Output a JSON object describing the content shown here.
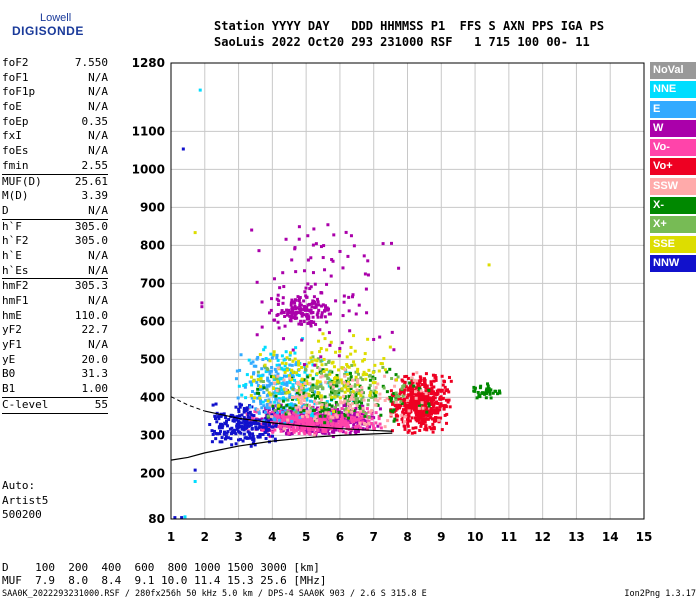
{
  "logo": {
    "top": "Lowell",
    "bottom": "DIGISONDE"
  },
  "header": {
    "line1": "Station YYYY DAY   DDD HHMMSS P1  FFS S AXN PPS IGA PS",
    "line2": "SaoLuis 2022 Oct20 293 231000 RSF   1 715 100 00- 11"
  },
  "params": {
    "group1": [
      {
        "name": "foF2",
        "value": "7.550"
      },
      {
        "name": "foF1",
        "value": "N/A"
      },
      {
        "name": "foF1p",
        "value": "N/A"
      },
      {
        "name": "foE",
        "value": "N/A"
      },
      {
        "name": "foEp",
        "value": "0.35"
      },
      {
        "name": "fxI",
        "value": "N/A"
      },
      {
        "name": "foEs",
        "value": "N/A"
      },
      {
        "name": "fmin",
        "value": "2.55"
      }
    ],
    "group2": [
      {
        "name": "MUF(D)",
        "value": "25.61"
      },
      {
        "name": "M(D)",
        "value": "3.39"
      },
      {
        "name": "D",
        "value": "N/A"
      }
    ],
    "group3": [
      {
        "name": "h`F",
        "value": "305.0"
      },
      {
        "name": "h`F2",
        "value": "305.0"
      },
      {
        "name": "h`E",
        "value": "N/A"
      },
      {
        "name": "h`Es",
        "value": "N/A"
      }
    ],
    "group4": [
      {
        "name": "hmF2",
        "value": "305.3"
      },
      {
        "name": "hmF1",
        "value": "N/A"
      },
      {
        "name": "hmE",
        "value": "110.0"
      },
      {
        "name": "yF2",
        "value": "22.7"
      },
      {
        "name": "yF1",
        "value": "N/A"
      },
      {
        "name": "yE",
        "value": "20.0"
      },
      {
        "name": "B0",
        "value": "31.3"
      },
      {
        "name": "B1",
        "value": "1.00"
      }
    ],
    "group5": [
      {
        "name": "C-level",
        "value": "55"
      }
    ]
  },
  "auto": [
    "Auto:",
    "Artist5",
    "500200"
  ],
  "legend": [
    {
      "label": "NoVal",
      "color": "#999999"
    },
    {
      "label": "NNE",
      "color": "#00ddff"
    },
    {
      "label": "E",
      "color": "#33aaff"
    },
    {
      "label": "W",
      "color": "#aa00aa"
    },
    {
      "label": "Vo-",
      "color": "#ff44aa"
    },
    {
      "label": "Vo+",
      "color": "#ee0022"
    },
    {
      "label": "SSW",
      "color": "#ffaaaa"
    },
    {
      "label": "X-",
      "color": "#008800"
    },
    {
      "label": "X+",
      "color": "#77bb55"
    },
    {
      "label": "SSE",
      "color": "#dddd00"
    },
    {
      "label": "NNW",
      "color": "#1111cc"
    }
  ],
  "muf_table": {
    "d_line": "D    100  200  400  600  800 1000 1500 3000 [km]",
    "muf_line": "MUF  7.9  8.0  8.4  9.1 10.0 11.4 15.3 25.6 [MHz]"
  },
  "footer": {
    "left": "SAA0K_2022293231000.RSF / 280fx256h 50 kHz 5.0 km / DPS-4 SAA0K 903 / 2.6 S 315.8 E",
    "right": "Ion2Png 1.3.17"
  },
  "chart_data": {
    "type": "scatter",
    "xlim": [
      1,
      15
    ],
    "ylim": [
      80,
      1280
    ],
    "x_unit": "MHz",
    "y_unit": "km",
    "x_ticks": [
      "1",
      "2",
      "3",
      "4",
      "5",
      "6",
      "7",
      "8",
      "9",
      "10",
      "11",
      "12",
      "13",
      "14",
      "15"
    ],
    "y_ticks": [
      {
        "value": 80,
        "label": "80"
      },
      {
        "value": 200,
        "label": "200"
      },
      {
        "value": 300,
        "label": "300"
      },
      {
        "value": 400,
        "label": "400"
      },
      {
        "value": 500,
        "label": "500"
      },
      {
        "value": 600,
        "label": "600"
      },
      {
        "value": 700,
        "label": "700"
      },
      {
        "value": 800,
        "label": "800"
      },
      {
        "value": 900,
        "label": "900"
      },
      {
        "value": 1000,
        "label": "1000"
      },
      {
        "value": 1100,
        "label": "1100"
      },
      {
        "value": 1280,
        "label": "1280"
      }
    ],
    "grid": true,
    "clusters": [
      {
        "series": "W",
        "x": [
          3.5,
          7.2
        ],
        "y": [
          300,
          390
        ],
        "density": 520
      },
      {
        "series": "Vo-",
        "x": [
          3.0,
          7.3
        ],
        "y": [
          305,
          380
        ],
        "density": 420
      },
      {
        "series": "Vo+",
        "x": [
          7.4,
          9.3
        ],
        "y": [
          305,
          470
        ],
        "density": 520
      },
      {
        "series": "NNW",
        "x": [
          2.0,
          4.2
        ],
        "y": [
          270,
          390
        ],
        "density": 220
      },
      {
        "series": "E",
        "x": [
          2.8,
          5.5
        ],
        "y": [
          320,
          540
        ],
        "density": 170
      },
      {
        "series": "NNE",
        "x": [
          2.8,
          6.5
        ],
        "y": [
          330,
          560
        ],
        "density": 110
      },
      {
        "series": "X-",
        "x": [
          3.2,
          9.0
        ],
        "y": [
          330,
          480
        ],
        "density": 160
      },
      {
        "series": "X+",
        "x": [
          3.2,
          8.5
        ],
        "y": [
          340,
          520
        ],
        "density": 160
      },
      {
        "series": "SSE",
        "x": [
          3.0,
          8.0
        ],
        "y": [
          350,
          580
        ],
        "density": 160
      },
      {
        "series": "SSW",
        "x": [
          3.0,
          9.2
        ],
        "y": [
          300,
          500
        ],
        "density": 140
      },
      {
        "series": "W",
        "x": [
          3.8,
          5.8
        ],
        "y": [
          580,
          680
        ],
        "density": 140
      },
      {
        "series": "W",
        "x": [
          3.0,
          7.8
        ],
        "y": [
          450,
          900
        ],
        "density": 100
      },
      {
        "series": "X-",
        "x": [
          9.8,
          10.8
        ],
        "y": [
          400,
          440
        ],
        "density": 40
      }
    ],
    "isolated_points": [
      {
        "series": "NNW",
        "x": 1.35,
        "y": 1055
      },
      {
        "series": "NNE",
        "x": 1.85,
        "y": 1210
      },
      {
        "series": "SSE",
        "x": 1.7,
        "y": 835
      },
      {
        "series": "W",
        "x": 1.9,
        "y": 650
      },
      {
        "series": "W",
        "x": 1.9,
        "y": 640
      },
      {
        "series": "NNW",
        "x": 1.1,
        "y": 85
      },
      {
        "series": "NNW",
        "x": 1.3,
        "y": 85
      },
      {
        "series": "NNE",
        "x": 1.4,
        "y": 87
      },
      {
        "series": "SSE",
        "x": 10.4,
        "y": 750
      },
      {
        "series": "NNE",
        "x": 1.7,
        "y": 180
      },
      {
        "series": "NNW",
        "x": 1.7,
        "y": 210
      }
    ],
    "lines": [
      {
        "name": "virtual",
        "x": [
          1.0,
          1.5,
          2.0,
          3.0,
          4.0,
          5.0,
          6.0,
          7.0,
          7.55
        ],
        "y": [
          402,
          380,
          364,
          345,
          333,
          324,
          318,
          313,
          311
        ],
        "dashed": [
          1.0,
          2.0
        ]
      },
      {
        "name": "true",
        "x": [
          1.0,
          1.5,
          2.0,
          3.0,
          4.0,
          5.0,
          6.0,
          7.0,
          7.55
        ],
        "y": [
          235,
          242,
          254,
          272,
          285,
          294,
          300,
          304,
          306
        ]
      }
    ]
  }
}
